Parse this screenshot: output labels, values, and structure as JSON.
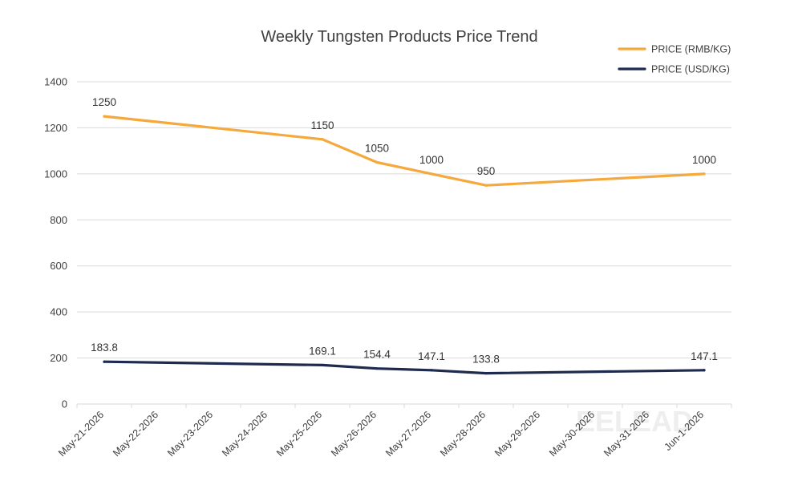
{
  "chart_data": {
    "type": "line",
    "title": "Weekly Tungsten Products Price Trend",
    "xlabel": "",
    "ylabel": "",
    "ylim": [
      0,
      1400
    ],
    "yticks": [
      0,
      200,
      400,
      600,
      800,
      1000,
      1200,
      1400
    ],
    "categories": [
      "May-21-2026",
      "May-22-2026",
      "May-23-2026",
      "May-24-2026",
      "May-25-2026",
      "May-26-2026",
      "May-27-2026",
      "May-28-2026",
      "May-29-2026",
      "May-30-2026",
      "May-31-2026",
      "Jun-1-2026"
    ],
    "legend_position": "top-right",
    "grid": "horizontal",
    "series": [
      {
        "name": "PRICE (RMB/KG)",
        "color": "#f5a83c",
        "points": [
          {
            "x": "May-21-2026",
            "y": 1250,
            "label": "1250"
          },
          {
            "x": "May-25-2026",
            "y": 1150,
            "label": "1150"
          },
          {
            "x": "May-26-2026",
            "y": 1050,
            "label": "1050"
          },
          {
            "x": "May-27-2026",
            "y": 1000,
            "label": "1000"
          },
          {
            "x": "May-28-2026",
            "y": 950,
            "label": "950"
          },
          {
            "x": "Jun-1-2026",
            "y": 1000,
            "label": "1000"
          }
        ]
      },
      {
        "name": "PRICE (USD/KG)",
        "color": "#1f2a4f",
        "points": [
          {
            "x": "May-21-2026",
            "y": 183.8,
            "label": "183.8"
          },
          {
            "x": "May-25-2026",
            "y": 169.1,
            "label": "169.1"
          },
          {
            "x": "May-26-2026",
            "y": 154.4,
            "label": "154.4"
          },
          {
            "x": "May-27-2026",
            "y": 147.1,
            "label": "147.1"
          },
          {
            "x": "May-28-2026",
            "y": 133.8,
            "label": "133.8"
          },
          {
            "x": "Jun-1-2026",
            "y": 147.1,
            "label": "147.1"
          }
        ]
      }
    ]
  },
  "watermark": {
    "text": "EELEAD"
  }
}
